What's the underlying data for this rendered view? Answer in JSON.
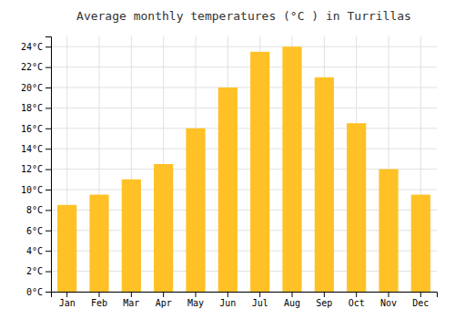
{
  "chart_data": {
    "type": "bar",
    "title": "Average monthly temperatures (°C ) in Turrillas",
    "categories": [
      "Jan",
      "Feb",
      "Mar",
      "Apr",
      "May",
      "Jun",
      "Jul",
      "Aug",
      "Sep",
      "Oct",
      "Nov",
      "Dec"
    ],
    "values": [
      8.5,
      9.5,
      11.0,
      12.5,
      16.0,
      20.0,
      23.5,
      24.0,
      21.0,
      16.5,
      12.0,
      9.5
    ],
    "color": "#FFC125",
    "ylim": [
      0,
      25
    ],
    "yticks": [
      {
        "value": 0,
        "label": "0°C"
      },
      {
        "value": 2,
        "label": "2°C"
      },
      {
        "value": 4,
        "label": "4°C"
      },
      {
        "value": 6,
        "label": "6°C"
      },
      {
        "value": 8,
        "label": "8°C"
      },
      {
        "value": 10,
        "label": "10°C"
      },
      {
        "value": 12,
        "label": "12°C"
      },
      {
        "value": 14,
        "label": "14°C"
      },
      {
        "value": 16,
        "label": "16°C"
      },
      {
        "value": 18,
        "label": "18°C"
      },
      {
        "value": 20,
        "label": "20°C"
      },
      {
        "value": 22,
        "label": "22°C"
      },
      {
        "value": 24,
        "label": "24°C"
      }
    ],
    "grid": true
  }
}
